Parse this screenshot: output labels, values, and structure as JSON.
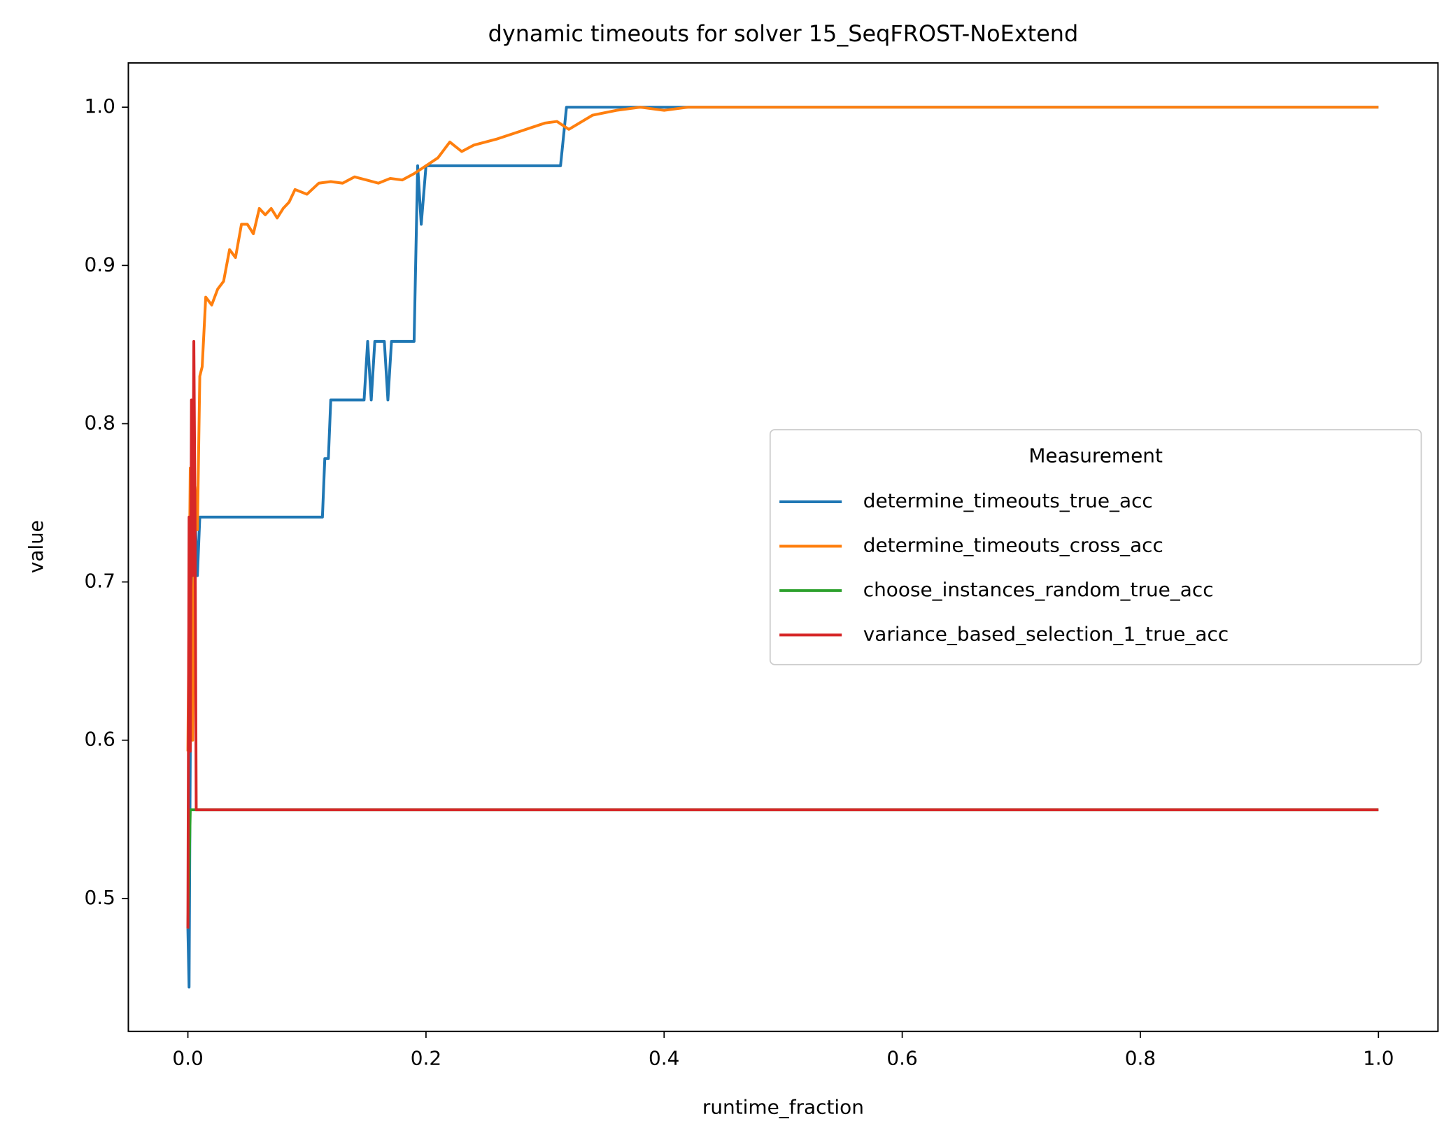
{
  "chart_data": {
    "type": "line",
    "title": "dynamic timeouts for solver 15_SeqFROST-NoExtend",
    "x_label": "runtime_fraction",
    "y_label": "value",
    "legend_title": "Measurement",
    "legend_loc": "center right",
    "grid": false,
    "xlim": [
      -0.05,
      1.05
    ],
    "ylim": [
      0.416,
      1.028
    ],
    "xticks": [
      {
        "value": 0,
        "label": "0.0"
      },
      0.2,
      0.4,
      0.6,
      0.8,
      {
        "value": 1,
        "label": "1.0"
      }
    ],
    "yticks": [
      0.5,
      0.6,
      0.7,
      0.8,
      0.9,
      {
        "value": 1,
        "label": "1.0"
      }
    ],
    "series": [
      {
        "name": "determine_timeouts_true_acc",
        "color": "#1f77b4",
        "x": [
          0,
          0.001,
          0.002,
          0.004,
          0.006,
          0.008,
          0.01,
          0.113,
          0.115,
          0.118,
          0.12,
          0.148,
          0.151,
          0.154,
          0.157,
          0.165,
          0.168,
          0.171,
          0.19,
          0.193,
          0.196,
          0.2,
          0.313,
          0.318,
          1.0
        ],
        "values": [
          0.481,
          0.444,
          0.593,
          0.741,
          0.741,
          0.704,
          0.741,
          0.741,
          0.778,
          0.778,
          0.815,
          0.815,
          0.852,
          0.815,
          0.852,
          0.852,
          0.815,
          0.852,
          0.852,
          0.963,
          0.926,
          0.963,
          0.963,
          1.0,
          1.0
        ]
      },
      {
        "name": "determine_timeouts_cross_acc",
        "color": "#ff7f0e",
        "x": [
          0,
          0.002,
          0.004,
          0.006,
          0.008,
          0.01,
          0.012,
          0.015,
          0.02,
          0.025,
          0.03,
          0.035,
          0.04,
          0.045,
          0.05,
          0.055,
          0.06,
          0.065,
          0.07,
          0.075,
          0.08,
          0.085,
          0.09,
          0.1,
          0.11,
          0.12,
          0.13,
          0.14,
          0.15,
          0.16,
          0.17,
          0.18,
          0.19,
          0.2,
          0.21,
          0.22,
          0.23,
          0.24,
          0.26,
          0.28,
          0.3,
          0.31,
          0.32,
          0.34,
          0.36,
          0.38,
          0.4,
          0.42,
          1.0
        ],
        "values": [
          0.593,
          0.772,
          0.6,
          0.76,
          0.733,
          0.83,
          0.836,
          0.88,
          0.875,
          0.885,
          0.89,
          0.91,
          0.905,
          0.926,
          0.926,
          0.92,
          0.936,
          0.932,
          0.936,
          0.93,
          0.936,
          0.94,
          0.948,
          0.945,
          0.952,
          0.953,
          0.952,
          0.956,
          0.954,
          0.952,
          0.955,
          0.954,
          0.958,
          0.963,
          0.968,
          0.978,
          0.972,
          0.976,
          0.98,
          0.985,
          0.99,
          0.991,
          0.986,
          0.995,
          0.998,
          1.0,
          0.998,
          1.0,
          1.0
        ]
      },
      {
        "name": "choose_instances_random_true_acc",
        "color": "#2ca02c",
        "x": [
          0,
          0.002,
          0.004,
          1.0
        ],
        "values": [
          0.481,
          0.556,
          0.556,
          0.556
        ]
      },
      {
        "name": "variance_based_selection_1_true_acc",
        "color": "#d62728",
        "x": [
          0,
          0.001,
          0.002,
          0.003,
          0.004,
          0.005,
          0.006,
          0.007,
          1.0
        ],
        "values": [
          0.481,
          0.741,
          0.593,
          0.815,
          0.704,
          0.852,
          0.741,
          0.556,
          0.556
        ]
      }
    ]
  }
}
